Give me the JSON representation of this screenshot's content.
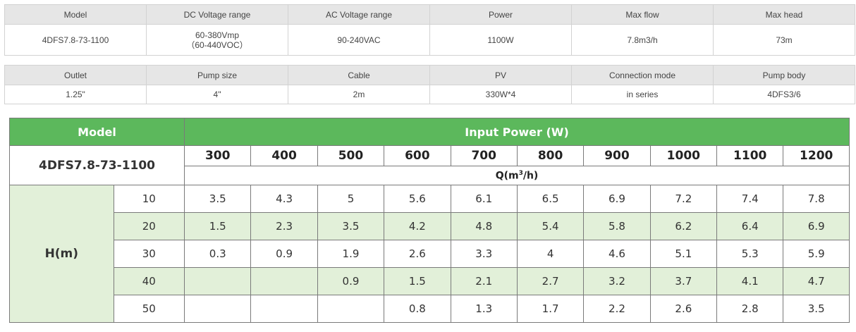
{
  "spec_table_1": {
    "headers": [
      "Model",
      "DC Voltage range",
      "AC Voltage range",
      "Power",
      "Max flow",
      "Max head"
    ],
    "values": {
      "model": "4DFS7.8-73-1100",
      "dc_voltage_line1": "60-380Vmp",
      "dc_voltage_line2": "（60-440VOC）",
      "ac_voltage": "90-240VAC",
      "power": "1100W",
      "max_flow": "7.8m3/h",
      "max_head": "73m"
    }
  },
  "spec_table_2": {
    "headers": [
      "Outlet",
      "Pump size",
      "Cable",
      "PV",
      "Connection mode",
      "Pump body"
    ],
    "values": [
      "1.25\"",
      "4\"",
      "2m",
      "330W*4",
      "in series",
      "4DFS3/6"
    ]
  },
  "performance_table": {
    "model_header": "Model",
    "power_header": "Input Power (W)",
    "model_name": "4DFS7.8-73-1100",
    "flow_label_prefix": "Q(m",
    "flow_label_sup": "3",
    "flow_label_suffix": "/h)",
    "head_label": "H(m)",
    "powers": [
      "300",
      "400",
      "500",
      "600",
      "700",
      "800",
      "900",
      "1000",
      "1100",
      "1200"
    ],
    "rows": [
      {
        "head": "10",
        "flows": [
          "3.5",
          "4.3",
          "5",
          "5.6",
          "6.1",
          "6.5",
          "6.9",
          "7.2",
          "7.4",
          "7.8"
        ]
      },
      {
        "head": "20",
        "flows": [
          "1.5",
          "2.3",
          "3.5",
          "4.2",
          "4.8",
          "5.4",
          "5.8",
          "6.2",
          "6.4",
          "6.9"
        ]
      },
      {
        "head": "30",
        "flows": [
          "0.3",
          "0.9",
          "1.9",
          "2.6",
          "3.3",
          "4",
          "4.6",
          "5.1",
          "5.3",
          "5.9"
        ]
      },
      {
        "head": "40",
        "flows": [
          "",
          "",
          "0.9",
          "1.5",
          "2.1",
          "2.7",
          "3.2",
          "3.7",
          "4.1",
          "4.7"
        ]
      },
      {
        "head": "50",
        "flows": [
          "",
          "",
          "",
          "0.8",
          "1.3",
          "1.7",
          "2.2",
          "2.6",
          "2.8",
          "3.5"
        ]
      }
    ]
  },
  "colors": {
    "header_green": "#5cb85c",
    "row_light_green": "#e2f0d9",
    "spec_header_gray": "#e6e6e6"
  }
}
